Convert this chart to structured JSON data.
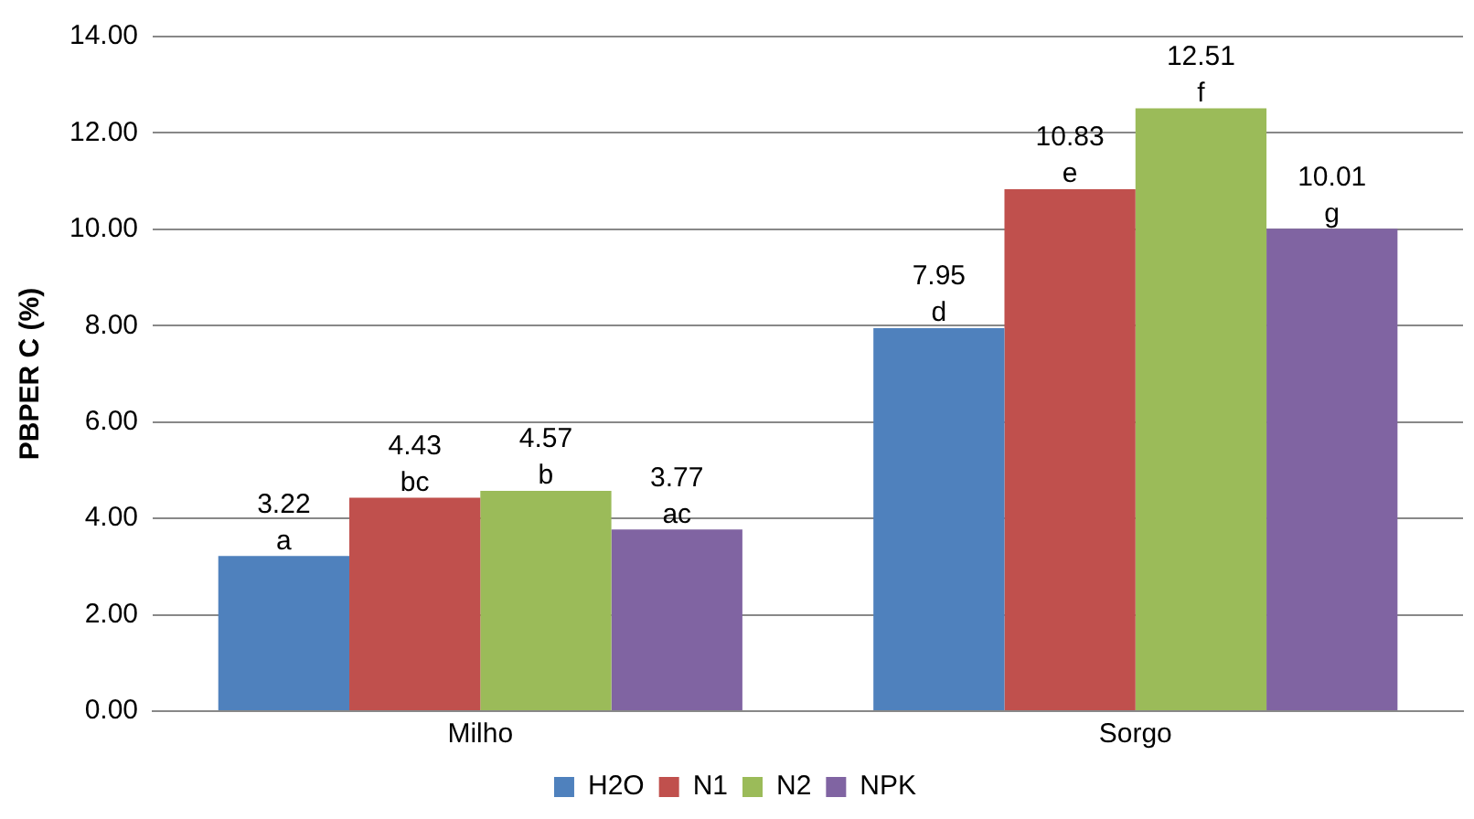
{
  "chart_data": {
    "type": "bar",
    "ylabel": "PBPER C (%)",
    "categories": [
      "Milho",
      "Sorgo"
    ],
    "series": [
      {
        "name": "H2O",
        "color": "#4f81bd",
        "values": [
          3.22,
          7.95
        ],
        "value_labels": [
          "3.22\na",
          "7.95\nd"
        ]
      },
      {
        "name": "N1",
        "color": "#c0504d",
        "values": [
          4.43,
          10.83
        ],
        "value_labels": [
          "4.43\nbc",
          "10.83\ne"
        ]
      },
      {
        "name": "N2",
        "color": "#9bbb59",
        "values": [
          4.57,
          12.51
        ],
        "value_labels": [
          "4.57\nb",
          "12.51\nf"
        ]
      },
      {
        "name": "NPK",
        "color": "#8064a2",
        "values": [
          3.77,
          10.01
        ],
        "value_labels": [
          "3.77\nac",
          "10.01\ng"
        ]
      }
    ],
    "ylim": [
      0,
      14
    ],
    "yticks": [
      {
        "value": 0,
        "label": "0.00"
      },
      {
        "value": 2,
        "label": "2.00"
      },
      {
        "value": 4,
        "label": "4.00"
      },
      {
        "value": 6,
        "label": "6.00"
      },
      {
        "value": 8,
        "label": "8.00"
      },
      {
        "value": 10,
        "label": "10.00"
      },
      {
        "value": 12,
        "label": "12.00"
      },
      {
        "value": 14,
        "label": "14.00"
      }
    ],
    "grid": "y",
    "legend": "bottom"
  }
}
